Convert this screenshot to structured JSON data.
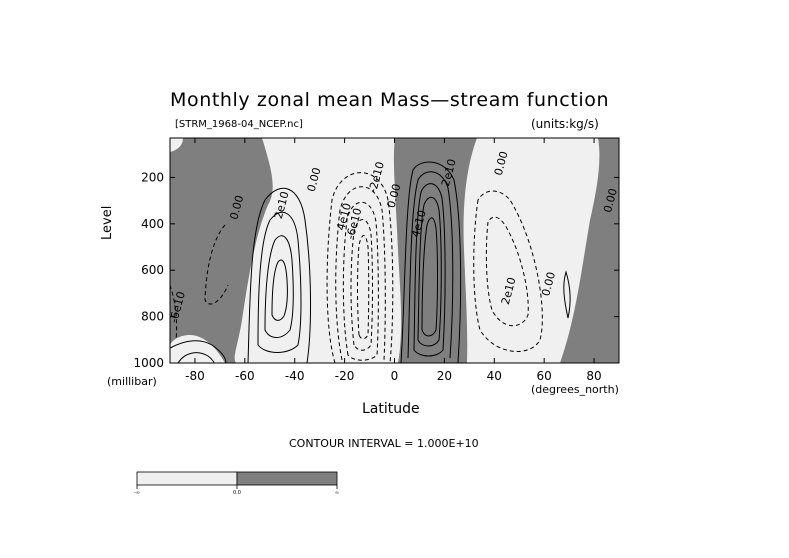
{
  "chart_data": {
    "type": "contour",
    "title": "Monthly zonal mean Mass—stream function",
    "subtitle_file": "[STRM_1968-04_NCEP.nc]",
    "units_label": "(units:kg/s)",
    "xlabel": "Latitude",
    "x_units": "(degrees_north)",
    "ylabel": "Level",
    "y_units": "(millibar)",
    "x_ticks": [
      -80,
      -60,
      -40,
      -20,
      0,
      20,
      40,
      60,
      80
    ],
    "y_ticks": [
      200,
      400,
      600,
      800,
      1000
    ],
    "xlim": [
      -90,
      90
    ],
    "ylim": [
      1000,
      30
    ],
    "contour_interval_text": "CONTOUR INTERVAL = 1.000E+10",
    "contour_labels": [
      {
        "text": "-6e10",
        "x": -89,
        "y": 760
      },
      {
        "text": "0.00",
        "x": -63,
        "y": 330
      },
      {
        "text": "2e10",
        "x": -45,
        "y": 320
      },
      {
        "text": "0.00",
        "x": -32,
        "y": 210
      },
      {
        "text": "4e10",
        "x": -20,
        "y": 370
      },
      {
        "text": "-6e10",
        "x": -16,
        "y": 400
      },
      {
        "text": "-2e10",
        "x": -7,
        "y": 200
      },
      {
        "text": "0.00",
        "x": 0,
        "y": 280
      },
      {
        "text": "4e10",
        "x": 10,
        "y": 400
      },
      {
        "text": "2e10",
        "x": 22,
        "y": 180
      },
      {
        "text": "0.00",
        "x": 43,
        "y": 140
      },
      {
        "text": "2e10",
        "x": 46,
        "y": 690
      },
      {
        "text": "0.00",
        "x": 62,
        "y": 660
      },
      {
        "text": "0.00",
        "x": 87,
        "y": 300
      }
    ],
    "colorbar": {
      "labels": [
        "-∞",
        "0.0",
        "∞"
      ],
      "colors": [
        "#f0f0f0",
        "#7f7f7f"
      ]
    },
    "colors": {
      "positive": "#7f7f7f",
      "negative": "#f0f0f0",
      "lines": "#000000"
    }
  }
}
